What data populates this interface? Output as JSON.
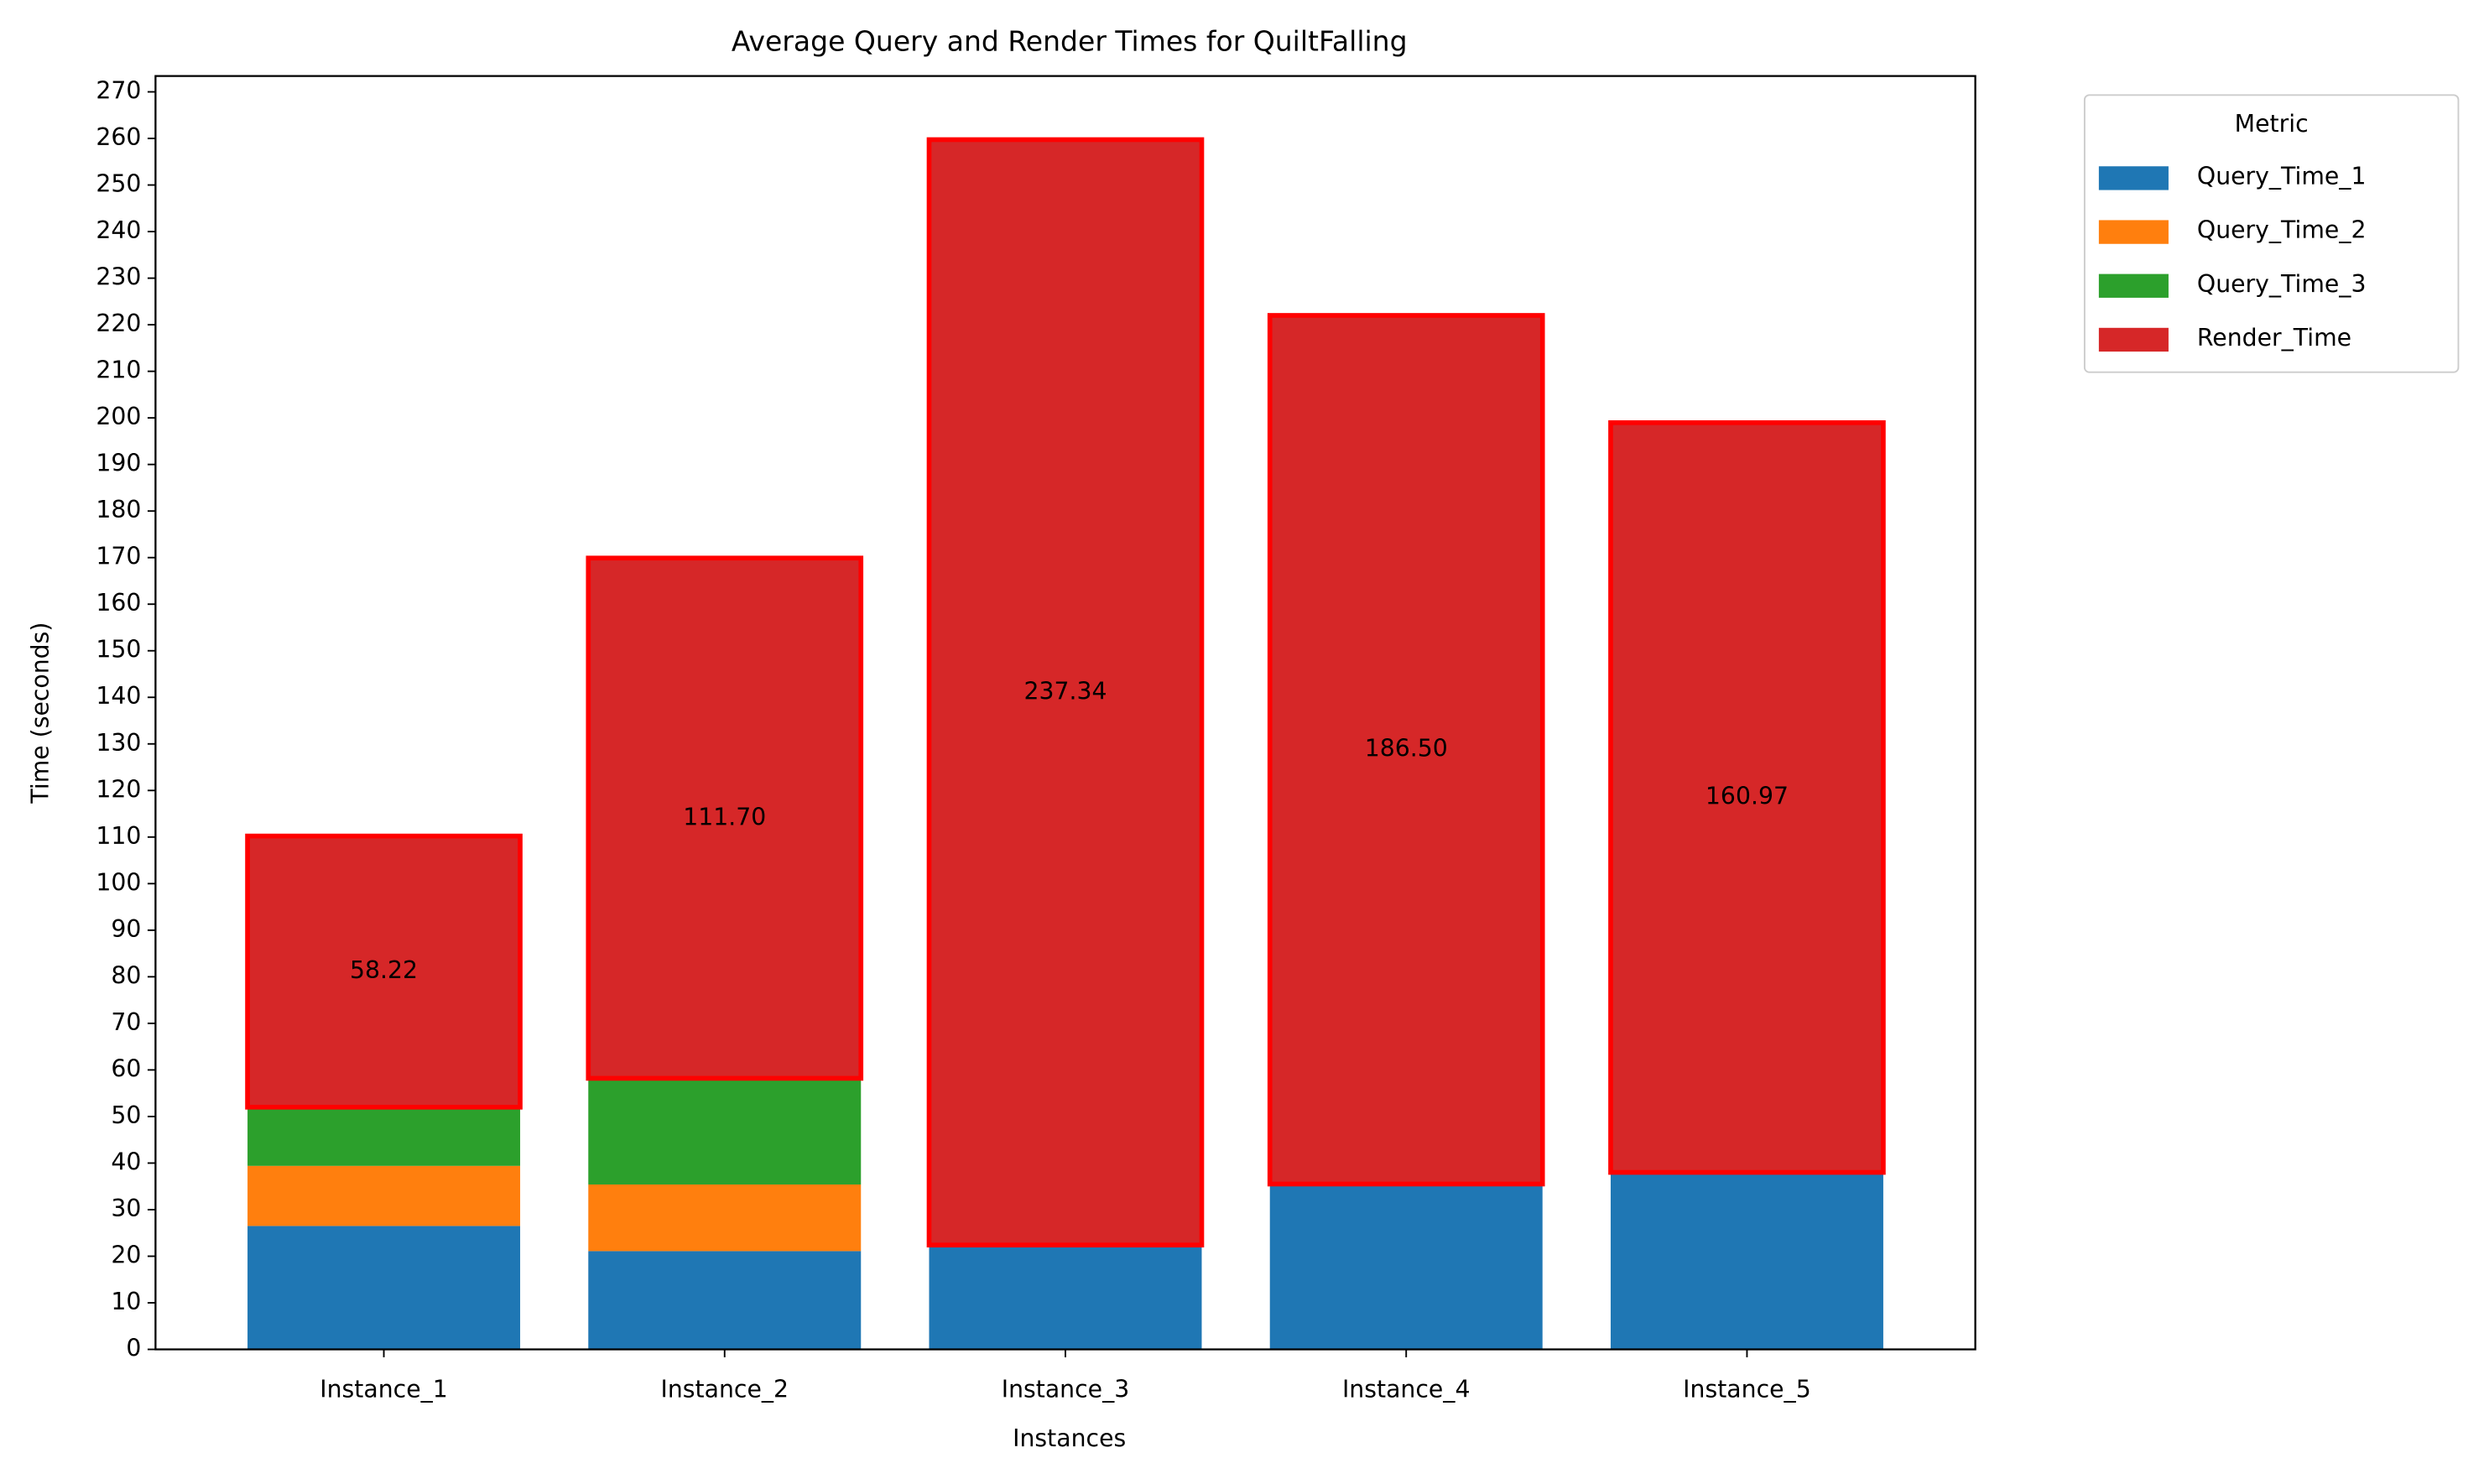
{
  "chart_data": {
    "type": "stacked_bar",
    "title": "Average Query and Render Times for QuiltFalling",
    "x_label": "Instances",
    "y_label": "Time (seconds)",
    "legend_title": "Metric",
    "legend_position": "outside upper right",
    "categories": [
      "Instance_1",
      "Instance_2",
      "Instance_3",
      "Instance_4",
      "Instance_5"
    ],
    "series": [
      {
        "name": "Query_Time_1",
        "color": "#1f77b4",
        "values": [
          26.5,
          21.1,
          22.4,
          35.5,
          38.0
        ]
      },
      {
        "name": "Query_Time_2",
        "color": "#ff7f0e",
        "values": [
          12.9,
          14.3,
          0,
          0,
          0
        ]
      },
      {
        "name": "Query_Time_3",
        "color": "#2ca02c",
        "values": [
          12.6,
          22.8,
          0,
          0,
          0
        ]
      },
      {
        "name": "Render_Time",
        "color": "#d62728",
        "edge_color": "#ff0000",
        "values": [
          58.22,
          111.7,
          237.34,
          186.5,
          160.97
        ],
        "value_labels": [
          "58.22",
          "111.70",
          "237.34",
          "186.50",
          "160.97"
        ]
      }
    ],
    "ylim": [
      0,
      273.4
    ],
    "yticks": [
      0,
      10,
      20,
      30,
      40,
      50,
      60,
      70,
      80,
      90,
      100,
      110,
      120,
      130,
      140,
      150,
      160,
      170,
      180,
      190,
      200,
      210,
      220,
      230,
      240,
      250,
      260,
      270
    ]
  }
}
